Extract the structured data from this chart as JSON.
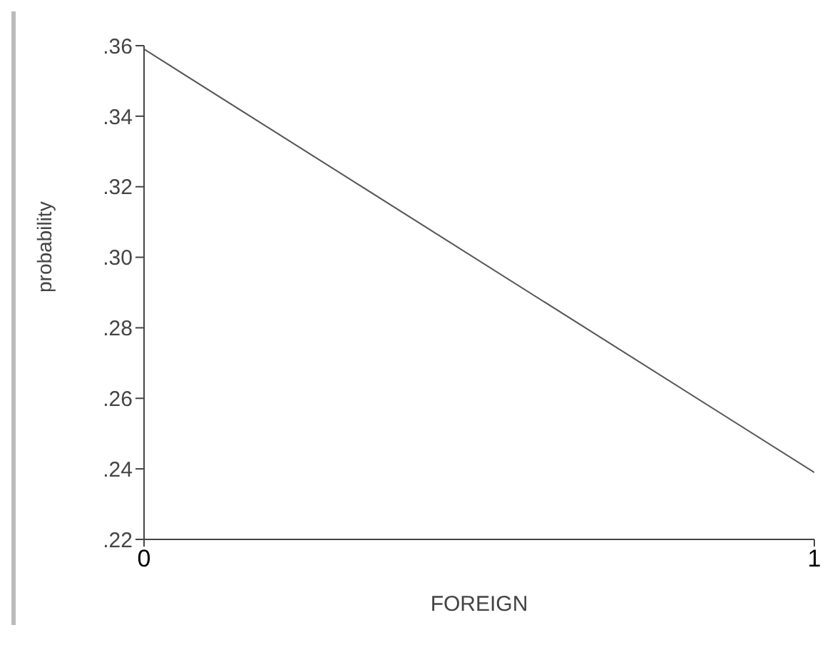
{
  "chart_data": {
    "type": "line",
    "xlabel": "FOREIGN",
    "ylabel": "probability",
    "x": [
      0,
      1
    ],
    "series": [
      {
        "color": "#555555",
        "values": [
          0.359,
          0.239
        ]
      }
    ],
    "xlim": [
      0,
      1
    ],
    "xticks": [
      0,
      1
    ],
    "ylim": [
      0.22,
      0.36
    ],
    "yticks": [
      {
        "value": 0.22,
        "label": ".22"
      },
      {
        "value": 0.24,
        "label": ".24"
      },
      {
        "value": 0.26,
        "label": ".26"
      },
      {
        "value": 0.28,
        "label": ".28"
      },
      {
        "value": 0.3,
        "label": ".30"
      },
      {
        "value": 0.32,
        "label": ".32"
      },
      {
        "value": 0.34,
        "label": ".34"
      },
      {
        "value": 0.36,
        "label": ".36"
      }
    ],
    "grid": false,
    "marker": "none",
    "line_style": "solid"
  }
}
